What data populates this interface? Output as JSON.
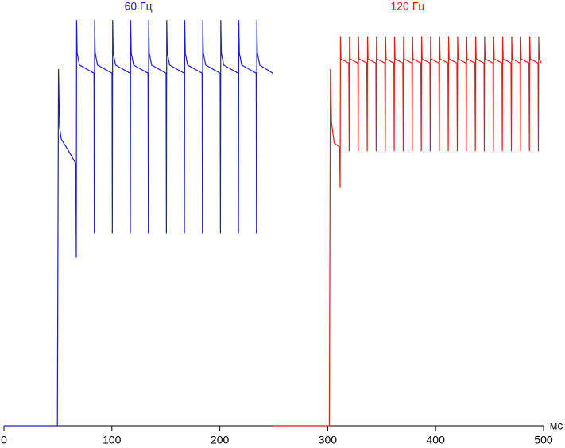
{
  "chart_data": {
    "type": "line",
    "xlabel": "мс",
    "xlim": [
      0,
      500
    ],
    "xticks": [
      0,
      100,
      200,
      300,
      400,
      500
    ],
    "ylim": [
      0,
      100
    ],
    "series": [
      {
        "name": "60 Гц",
        "color": "#1c1cc8",
        "x": [
          0,
          49.5,
          50.5,
          51.5,
          53,
          60,
          66.5,
          67,
          67.3,
          67.8,
          70,
          83.4,
          83.7,
          84.0,
          84.5,
          86.7,
          100.1,
          100.4,
          100.7,
          101.2,
          103.4,
          116.8,
          117.1,
          117.4,
          117.9,
          120.1,
          133.5,
          133.8,
          134.1,
          134.6,
          136.8,
          150.2,
          150.5,
          150.8,
          151.3,
          153.5,
          166.9,
          167.2,
          167.5,
          168.0,
          170.2,
          183.6,
          183.9,
          184.2,
          184.7,
          186.9,
          200.3,
          200.6,
          200.9,
          201.4,
          203.6,
          217.0,
          217.3,
          217.6,
          218.1,
          220.3,
          233.7,
          234.0,
          234.3,
          234.8,
          237.0,
          249.0
        ],
        "values": [
          0,
          0,
          87,
          73,
          70,
          67,
          64,
          41,
          99,
          91,
          88,
          86,
          47,
          99,
          91,
          88,
          86,
          47,
          99,
          91,
          88,
          86,
          47,
          99,
          91,
          88,
          86,
          47,
          99,
          91,
          88,
          86,
          47,
          99,
          91,
          88,
          86,
          47,
          99,
          91,
          88,
          86,
          47,
          99,
          91,
          88,
          86,
          47,
          99,
          91,
          88,
          86,
          47,
          99,
          91,
          88,
          86,
          47,
          99,
          91,
          88,
          86
        ]
      },
      {
        "name": "120 Гц",
        "color": "#e01c1c",
        "x": [
          250,
          301.5,
          302.5,
          303.5,
          306,
          311,
          311.5,
          311.8,
          312.3,
          319.5,
          319.9,
          320.2,
          320.7,
          327.9,
          328.2,
          328.5,
          329.0,
          336.2,
          336.6,
          336.9,
          337.4,
          344.6,
          344.9,
          345.2,
          345.7,
          352.9,
          353.3,
          353.6,
          354.1,
          361.3,
          361.6,
          361.9,
          362.4,
          369.6,
          370.0,
          370.3,
          370.8,
          378.0,
          378.3,
          378.6,
          379.1,
          386.3,
          386.7,
          387.0,
          387.5,
          394.7,
          395.0,
          395.3,
          395.8,
          403.0,
          403.4,
          403.7,
          404.2,
          411.4,
          411.7,
          412.0,
          412.5,
          419.7,
          420.1,
          420.4,
          420.9,
          428.1,
          428.4,
          428.7,
          429.2,
          436.4,
          436.8,
          437.1,
          437.6,
          444.8,
          445.1,
          445.4,
          445.9,
          453.1,
          453.5,
          453.8,
          454.3,
          461.5,
          461.8,
          462.1,
          462.6,
          469.8,
          470.2,
          470.5,
          471.0,
          478.2,
          478.5,
          478.8,
          479.3,
          486.5,
          486.9,
          487.2,
          487.7,
          494.9,
          495.2,
          495.5,
          496.0,
          498.0
        ],
        "values": [
          0,
          0,
          87,
          74,
          69,
          68,
          58,
          95,
          89.5,
          88.5,
          67,
          95,
          89.5,
          88.5,
          67,
          95,
          89.5,
          88.5,
          67,
          95,
          89.5,
          88.5,
          67,
          95,
          89.5,
          88.5,
          67,
          95,
          89.5,
          88.5,
          67,
          95,
          89.5,
          88.5,
          67,
          95,
          89.5,
          88.5,
          67,
          95,
          89.5,
          88.5,
          67,
          95,
          89.5,
          88.5,
          67,
          95,
          89.5,
          88.5,
          67,
          95,
          89.5,
          88.5,
          67,
          95,
          89.5,
          88.5,
          67,
          95,
          89.5,
          88.5,
          67,
          95,
          89.5,
          88.5,
          67,
          95,
          89.5,
          88.5,
          67,
          95,
          89.5,
          88.5,
          67,
          95,
          89.5,
          88.5,
          67,
          95,
          89.5,
          88.5,
          67,
          95,
          89.5,
          88.5,
          67,
          95,
          89.5,
          88.5,
          67,
          95,
          89.5,
          88.5,
          67,
          95,
          89.5,
          88.5
        ]
      }
    ]
  }
}
